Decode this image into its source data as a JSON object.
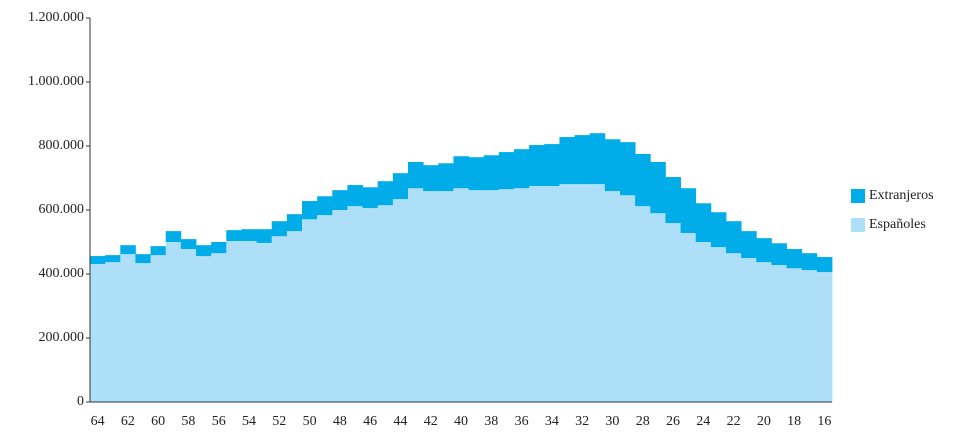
{
  "chart_data": {
    "type": "stacked_step_area",
    "categories": [
      "64",
      null,
      "62",
      null,
      "60",
      null,
      "58",
      null,
      "56",
      null,
      "54",
      null,
      "52",
      null,
      "50",
      null,
      "48",
      null,
      "46",
      null,
      "44",
      null,
      "42",
      null,
      "40",
      null,
      "38",
      null,
      "36",
      null,
      "34",
      null,
      "32",
      null,
      "30",
      null,
      "28",
      null,
      "26",
      null,
      "24",
      null,
      "22",
      null,
      "20",
      null,
      "18",
      null,
      "16"
    ],
    "series": [
      {
        "name": "Españoles",
        "color": "#addff8",
        "values": [
          431000,
          437000,
          462000,
          434000,
          459000,
          500000,
          478000,
          456000,
          465000,
          503000,
          503000,
          497000,
          518000,
          534000,
          571000,
          584000,
          600000,
          612000,
          606000,
          615000,
          634000,
          668000,
          659000,
          659000,
          668000,
          662000,
          662000,
          665000,
          668000,
          675000,
          675000,
          681000,
          681000,
          681000,
          659000,
          646000,
          612000,
          590000,
          559000,
          528000,
          500000,
          484000,
          465000,
          450000,
          437000,
          428000,
          418000,
          412000,
          406000
        ]
      },
      {
        "name": "Extranjeros",
        "color": "#00ade8",
        "values": [
          25000,
          22000,
          28000,
          28000,
          28000,
          34000,
          31000,
          34000,
          35000,
          34000,
          37000,
          43000,
          47000,
          53000,
          57000,
          59000,
          62000,
          66000,
          65000,
          75000,
          81000,
          82000,
          81000,
          87000,
          100000,
          103000,
          109000,
          116000,
          122000,
          128000,
          131000,
          147000,
          153000,
          159000,
          162000,
          166000,
          163000,
          160000,
          144000,
          140000,
          121000,
          109000,
          100000,
          84000,
          75000,
          68000,
          60000,
          53000,
          47000
        ]
      }
    ],
    "ylim": [
      0,
      1200000
    ],
    "yticks": [
      0,
      {
        "value": 200000,
        "label": "200.000"
      },
      {
        "value": 400000,
        "label": "400.000"
      },
      {
        "value": 600000,
        "label": "600.000"
      },
      {
        "value": 800000,
        "label": "800.000"
      },
      {
        "value": 1000000,
        "label": "1.000.000"
      },
      {
        "value": 1200000,
        "label": "1.200.000"
      }
    ],
    "legend": "right"
  }
}
